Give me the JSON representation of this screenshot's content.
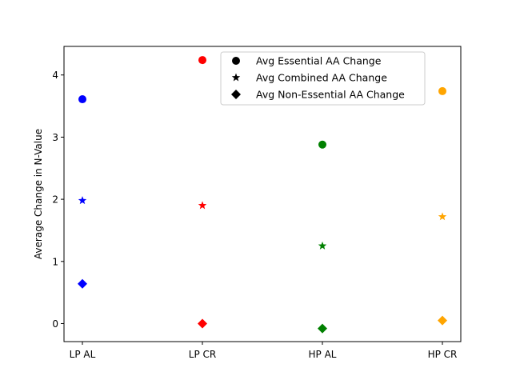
{
  "chart_data": {
    "type": "scatter",
    "categories": [
      "LP AL",
      "LP CR",
      "HP AL",
      "HP CR"
    ],
    "category_colors": [
      "#0000ff",
      "#ff0000",
      "#008000",
      "#ffa500"
    ],
    "ylabel": "Average Change in N-Value",
    "xlabel": "",
    "ylim": [
      -0.29,
      4.46
    ],
    "yticks": [
      0,
      1,
      2,
      3,
      4
    ],
    "grid": false,
    "legend_position": "upper-right",
    "series": [
      {
        "name": "Avg Essential AA Change",
        "marker": "circle",
        "values": [
          3.61,
          4.24,
          2.88,
          3.74
        ]
      },
      {
        "name": "Avg Combined AA Change",
        "marker": "star",
        "values": [
          1.98,
          1.9,
          1.25,
          1.72
        ]
      },
      {
        "name": "Avg Non-Essential AA Change",
        "marker": "diamond",
        "values": [
          0.64,
          0.0,
          -0.08,
          0.05
        ]
      }
    ]
  }
}
